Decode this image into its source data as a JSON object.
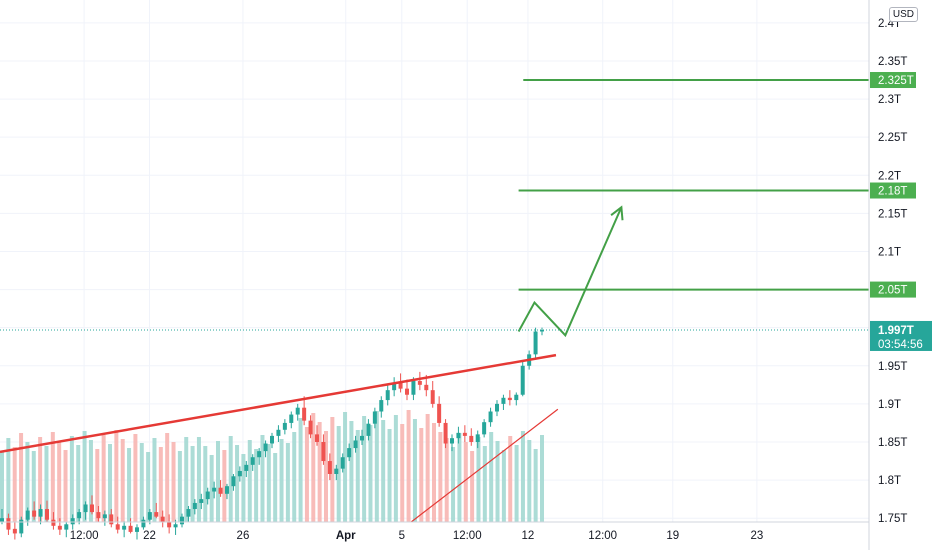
{
  "currency_label": "USD",
  "colors": {
    "up": "#26a69a",
    "down": "#ef5350",
    "up_volume": "#9ed6cf",
    "down_volume": "#f7b0ad",
    "trend": "#e53935",
    "projection": "#43a047",
    "level": "#43a047",
    "level_badge": "#4caf50",
    "price_line": "#26a69a",
    "grid": "#f0f3fa"
  },
  "chart_data": {
    "type": "candlestick",
    "y_axis": {
      "unit": "T",
      "ylim": [
        1.745,
        2.43
      ],
      "ticks": [
        1.75,
        1.8,
        1.85,
        1.9,
        1.95,
        2.0,
        2.05,
        2.1,
        2.15,
        2.2,
        2.25,
        2.3,
        2.35,
        2.4
      ],
      "tick_labels": {
        "1.75": "1.75T",
        "1.8": "1.8T",
        "1.85": "1.85T",
        "1.9": "1.9T",
        "1.95": "1.95T",
        "2.1": "2.1T",
        "2.15": "2.15T",
        "2.2": "2.2T",
        "2.25": "2.25T",
        "2.3": "2.3T",
        "2.35": "2.35T",
        "2.4": "2.4T"
      }
    },
    "x_axis": {
      "ticks": [
        {
          "label": "12:00",
          "t": 0.9
        },
        {
          "label": "22",
          "t": 1.6
        },
        {
          "label": "26",
          "t": 2.6
        },
        {
          "label": "Apr",
          "t": 3.7,
          "bold": true
        },
        {
          "label": "5",
          "t": 4.3
        },
        {
          "label": "12:00",
          "t": 5.0
        },
        {
          "label": "12",
          "t": 5.65
        },
        {
          "label": "12:00",
          "t": 6.45
        },
        {
          "label": "19",
          "t": 7.2
        },
        {
          "label": "23",
          "t": 8.1
        }
      ],
      "xlim": [
        0,
        9.3
      ]
    },
    "current_price": {
      "value": 1.997,
      "label": "1.997T",
      "countdown": "03:54:56"
    },
    "levels": [
      {
        "value": 2.325,
        "label": "2.325T",
        "from_t": 5.6
      },
      {
        "value": 2.18,
        "label": "2.18T",
        "from_t": 5.55
      },
      {
        "value": 2.05,
        "label": "2.05T",
        "from_t": 5.55
      }
    ],
    "trendlines": [
      {
        "name": "resistance",
        "points": [
          [
            0.0,
            1.837
          ],
          [
            5.95,
            1.964
          ]
        ],
        "width": 2.5
      },
      {
        "name": "support",
        "points": [
          [
            4.4,
            1.745
          ],
          [
            5.97,
            1.893
          ]
        ],
        "width": 1.2
      }
    ],
    "projection_path": [
      [
        5.55,
        1.995
      ],
      [
        5.72,
        2.033
      ],
      [
        6.05,
        1.99
      ],
      [
        6.65,
        2.158
      ]
    ],
    "candles": [
      [
        1.745,
        1.762,
        1.742,
        1.75
      ],
      [
        1.75,
        1.756,
        1.728,
        1.735
      ],
      [
        1.736,
        1.745,
        1.722,
        1.73
      ],
      [
        1.73,
        1.752,
        1.725,
        1.748
      ],
      [
        1.748,
        1.764,
        1.74,
        1.76
      ],
      [
        1.76,
        1.772,
        1.748,
        1.752
      ],
      [
        1.752,
        1.768,
        1.742,
        1.762
      ],
      [
        1.762,
        1.773,
        1.745,
        1.748
      ],
      [
        1.748,
        1.758,
        1.735,
        1.74
      ],
      [
        1.74,
        1.75,
        1.728,
        1.735
      ],
      [
        1.735,
        1.745,
        1.725,
        1.742
      ],
      [
        1.742,
        1.755,
        1.735,
        1.75
      ],
      [
        1.75,
        1.762,
        1.742,
        1.758
      ],
      [
        1.758,
        1.772,
        1.748,
        1.768
      ],
      [
        1.768,
        1.78,
        1.755,
        1.758
      ],
      [
        1.758,
        1.766,
        1.745,
        1.75
      ],
      [
        1.75,
        1.76,
        1.74,
        1.755
      ],
      [
        1.755,
        1.762,
        1.738,
        1.742
      ],
      [
        1.742,
        1.752,
        1.73,
        1.735
      ],
      [
        1.735,
        1.746,
        1.725,
        1.74
      ],
      [
        1.74,
        1.75,
        1.73,
        1.732
      ],
      [
        1.732,
        1.742,
        1.722,
        1.738
      ],
      [
        1.738,
        1.752,
        1.735,
        1.748
      ],
      [
        1.748,
        1.762,
        1.742,
        1.758
      ],
      [
        1.758,
        1.77,
        1.75,
        1.752
      ],
      [
        1.752,
        1.76,
        1.738,
        1.745
      ],
      [
        1.745,
        1.755,
        1.73,
        1.738
      ],
      [
        1.738,
        1.748,
        1.728,
        1.742
      ],
      [
        1.742,
        1.756,
        1.738,
        1.752
      ],
      [
        1.752,
        1.766,
        1.745,
        1.762
      ],
      [
        1.762,
        1.775,
        1.755,
        1.77
      ],
      [
        1.77,
        1.782,
        1.762,
        1.775
      ],
      [
        1.775,
        1.79,
        1.768,
        1.785
      ],
      [
        1.785,
        1.798,
        1.776,
        1.79
      ],
      [
        1.79,
        1.8,
        1.778,
        1.782
      ],
      [
        1.782,
        1.795,
        1.775,
        1.792
      ],
      [
        1.792,
        1.808,
        1.786,
        1.805
      ],
      [
        1.805,
        1.818,
        1.798,
        1.812
      ],
      [
        1.812,
        1.825,
        1.804,
        1.82
      ],
      [
        1.82,
        1.834,
        1.812,
        1.83
      ],
      [
        1.83,
        1.842,
        1.82,
        1.838
      ],
      [
        1.838,
        1.852,
        1.83,
        1.848
      ],
      [
        1.848,
        1.862,
        1.842,
        1.858
      ],
      [
        1.858,
        1.872,
        1.85,
        1.866
      ],
      [
        1.866,
        1.88,
        1.86,
        1.875
      ],
      [
        1.875,
        1.89,
        1.868,
        1.886
      ],
      [
        1.886,
        1.9,
        1.878,
        1.895
      ],
      [
        1.895,
        1.91,
        1.872,
        1.878
      ],
      [
        1.878,
        1.885,
        1.855,
        1.86
      ],
      [
        1.86,
        1.872,
        1.845,
        1.85
      ],
      [
        1.85,
        1.86,
        1.82,
        1.825
      ],
      [
        1.825,
        1.835,
        1.8,
        1.808
      ],
      [
        1.808,
        1.82,
        1.8,
        1.815
      ],
      [
        1.815,
        1.835,
        1.81,
        1.83
      ],
      [
        1.83,
        1.848,
        1.825,
        1.842
      ],
      [
        1.842,
        1.858,
        1.836,
        1.852
      ],
      [
        1.852,
        1.866,
        1.846,
        1.858
      ],
      [
        1.858,
        1.88,
        1.852,
        1.874
      ],
      [
        1.874,
        1.895,
        1.868,
        1.89
      ],
      [
        1.89,
        1.91,
        1.882,
        1.905
      ],
      [
        1.905,
        1.925,
        1.898,
        1.918
      ],
      [
        1.918,
        1.935,
        1.91,
        1.928
      ],
      [
        1.928,
        1.94,
        1.915,
        1.92
      ],
      [
        1.92,
        1.932,
        1.905,
        1.912
      ],
      [
        1.912,
        1.935,
        1.905,
        1.93
      ],
      [
        1.93,
        1.942,
        1.918,
        1.925
      ],
      [
        1.925,
        1.938,
        1.91,
        1.918
      ],
      [
        1.918,
        1.93,
        1.895,
        1.9
      ],
      [
        1.9,
        1.91,
        1.87,
        1.875
      ],
      [
        1.875,
        1.88,
        1.842,
        1.848
      ],
      [
        1.848,
        1.86,
        1.838,
        1.855
      ],
      [
        1.855,
        1.87,
        1.848,
        1.862
      ],
      [
        1.862,
        1.872,
        1.85,
        1.858
      ],
      [
        1.858,
        1.868,
        1.845,
        1.85
      ],
      [
        1.85,
        1.865,
        1.842,
        1.86
      ],
      [
        1.86,
        1.88,
        1.856,
        1.876
      ],
      [
        1.876,
        1.895,
        1.87,
        1.89
      ],
      [
        1.89,
        1.905,
        1.884,
        1.9
      ],
      [
        1.9,
        1.912,
        1.892,
        1.908
      ],
      [
        1.908,
        1.918,
        1.898,
        1.905
      ],
      [
        1.905,
        1.915,
        1.898,
        1.912
      ],
      [
        1.912,
        1.955,
        1.91,
        1.95
      ],
      [
        1.95,
        1.97,
        1.945,
        1.965
      ],
      [
        1.965,
        2.0,
        1.96,
        1.995
      ],
      [
        1.995,
        2.0,
        1.99,
        1.997
      ]
    ],
    "volume_bars": 86
  }
}
